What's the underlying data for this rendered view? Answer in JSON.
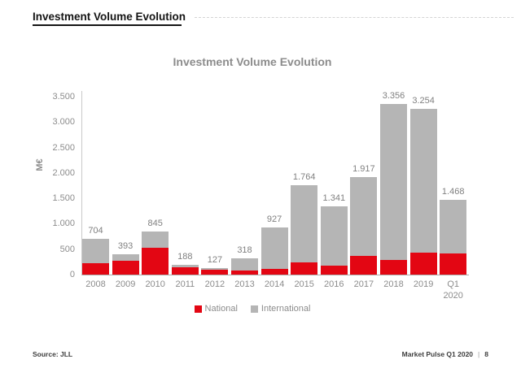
{
  "page": {
    "title": "Investment Volume Evolution",
    "footer_left": "Source: JLL",
    "footer_right": "Market Pulse Q1 2020",
    "footer_separator": "|",
    "footer_page": "8"
  },
  "colors": {
    "national": "#e30613",
    "international": "#b5b5b5",
    "axis_line": "#ababab",
    "label_gray": "#8c8c8c",
    "header_black": "#141414"
  },
  "chart_data": {
    "type": "bar",
    "stacked": true,
    "title": "Investment Volume Evolution",
    "xlabel": "",
    "ylabel": "M€",
    "ylim": [
      0,
      3500
    ],
    "ytick_values": [
      0,
      500,
      1000,
      1500,
      2000,
      2500,
      3000,
      3500
    ],
    "ytick_labels": [
      "0",
      "500",
      "1.000",
      "1.500",
      "2.000",
      "2.500",
      "3.000",
      "3.500"
    ],
    "grid": false,
    "legend_position": "bottom",
    "categories": [
      "2008",
      "2009",
      "2010",
      "2011",
      "2012",
      "2013",
      "2014",
      "2015",
      "2016",
      "2017",
      "2018",
      "2019",
      "Q1 2020"
    ],
    "xtick_labels": [
      "2008",
      "2009",
      "2010",
      "2011",
      "2012",
      "2013",
      "2014",
      "2015",
      "2016",
      "2017",
      "2018",
      "2019",
      "Q1\n2020"
    ],
    "totals": [
      704,
      393,
      845,
      188,
      127,
      318,
      927,
      1764,
      1341,
      1917,
      3356,
      3254,
      1468
    ],
    "total_labels": [
      "704",
      "393",
      "845",
      "188",
      "127",
      "318",
      "927",
      "1.764",
      "1.341",
      "1.917",
      "3.356",
      "3.254",
      "1.468"
    ],
    "series": [
      {
        "name": "National",
        "color": "#e30613",
        "values_estimated": true,
        "values": [
          230,
          270,
          530,
          140,
          90,
          75,
          110,
          240,
          180,
          370,
          290,
          430,
          415
        ]
      },
      {
        "name": "International",
        "color": "#b5b5b5",
        "values_estimated": true,
        "values": [
          474,
          123,
          315,
          48,
          37,
          243,
          817,
          1524,
          1161,
          1547,
          3066,
          2824,
          1053
        ]
      }
    ]
  }
}
